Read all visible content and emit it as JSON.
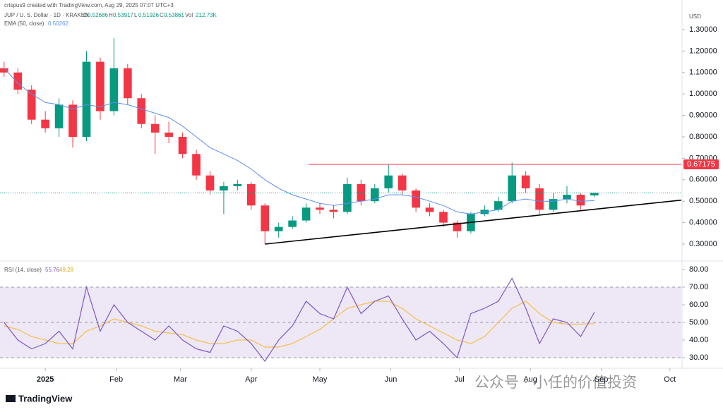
{
  "chart_data": [
    {
      "type": "candlestick",
      "author": "crispus9 created with TradingView.com, Aug 29, 2025 07:07 UTC+3",
      "symbol": "JUP / U. S. Dollar · 1D · KRAKEN",
      "ohlc_labels": [
        "O",
        "H",
        "L",
        "C"
      ],
      "volume_label": "Vol",
      "volume": "212.73K",
      "currency": "USD",
      "x": [
        -18,
        -12,
        -6,
        0,
        6,
        12,
        18,
        24,
        30,
        36,
        42,
        48,
        54,
        60,
        66,
        72,
        78,
        84,
        90,
        96,
        102,
        108,
        114,
        120,
        126,
        132,
        138,
        144,
        150,
        156,
        162,
        168,
        174,
        180,
        186,
        192,
        198,
        204,
        210,
        216,
        222,
        228,
        234,
        240
      ],
      "open": [
        1.12,
        1.1,
        1.02,
        0.88,
        0.84,
        0.95,
        0.8,
        1.15,
        0.92,
        1.12,
        0.98,
        0.86,
        0.82,
        0.8,
        0.72,
        0.62,
        0.55,
        0.57,
        0.58,
        0.48,
        0.36,
        0.38,
        0.41,
        0.47,
        0.46,
        0.45,
        0.58,
        0.5,
        0.56,
        0.62,
        0.55,
        0.47,
        0.45,
        0.4,
        0.36,
        0.44,
        0.46,
        0.5,
        0.62,
        0.56,
        0.46,
        0.51,
        0.53,
        0.52686
      ],
      "high": [
        1.15,
        1.12,
        1.04,
        0.92,
        0.98,
        0.97,
        1.2,
        1.17,
        1.26,
        1.14,
        1.0,
        0.9,
        0.87,
        0.82,
        0.74,
        0.64,
        0.59,
        0.6,
        0.59,
        0.49,
        0.4,
        0.43,
        0.49,
        0.49,
        0.48,
        0.61,
        0.6,
        0.58,
        0.67,
        0.63,
        0.56,
        0.49,
        0.46,
        0.41,
        0.45,
        0.48,
        0.52,
        0.68,
        0.64,
        0.58,
        0.54,
        0.57,
        0.54,
        0.53917
      ],
      "low": [
        1.08,
        1.0,
        0.86,
        0.82,
        0.8,
        0.75,
        0.78,
        0.88,
        0.9,
        0.95,
        0.84,
        0.72,
        0.77,
        0.7,
        0.6,
        0.53,
        0.44,
        0.55,
        0.46,
        0.3,
        0.33,
        0.37,
        0.4,
        0.44,
        0.42,
        0.44,
        0.48,
        0.49,
        0.54,
        0.53,
        0.45,
        0.43,
        0.38,
        0.33,
        0.35,
        0.43,
        0.45,
        0.49,
        0.54,
        0.44,
        0.45,
        0.49,
        0.46,
        0.51926
      ],
      "close": [
        1.1,
        1.02,
        0.88,
        0.84,
        0.95,
        0.8,
        1.15,
        0.92,
        1.12,
        0.98,
        0.86,
        0.82,
        0.8,
        0.72,
        0.62,
        0.55,
        0.57,
        0.58,
        0.48,
        0.36,
        0.38,
        0.41,
        0.47,
        0.46,
        0.45,
        0.58,
        0.5,
        0.56,
        0.62,
        0.55,
        0.47,
        0.45,
        0.4,
        0.36,
        0.44,
        0.46,
        0.5,
        0.62,
        0.56,
        0.46,
        0.51,
        0.53,
        0.48,
        0.53861
      ],
      "up_color": "#089981",
      "down_color": "#f23645",
      "ema": {
        "name": "EMA (50, close)",
        "color": "#5b8def",
        "values": [
          1.12,
          1.05,
          1.0,
          0.96,
          0.95,
          0.93,
          0.95,
          0.94,
          0.96,
          0.95,
          0.93,
          0.91,
          0.89,
          0.85,
          0.8,
          0.75,
          0.72,
          0.69,
          0.65,
          0.6,
          0.56,
          0.53,
          0.51,
          0.49,
          0.48,
          0.49,
          0.5,
          0.51,
          0.53,
          0.53,
          0.52,
          0.5,
          0.48,
          0.45,
          0.44,
          0.45,
          0.46,
          0.5,
          0.51,
          0.5,
          0.5,
          0.51,
          0.5,
          0.50262
        ]
      },
      "trendline": {
        "x": [
          96,
          278
        ],
        "values": [
          0.3,
          0.505
        ],
        "color": "#000000"
      },
      "resistance": {
        "x": [
          115,
          278
        ],
        "value": 0.67175,
        "color": "#f23645"
      },
      "xlim": [
        -19.8,
        278
      ],
      "ylim": [
        0.2276,
        1.438
      ],
      "yticks": [
        {
          "value": 0.3,
          "label": "0.30000"
        },
        {
          "value": 0.4,
          "label": "0.40000"
        },
        {
          "value": 0.5,
          "label": "0.50000"
        },
        {
          "value": 0.6,
          "label": "0.60000"
        },
        {
          "value": 0.7,
          "label": "0.70000"
        },
        {
          "value": 0.8,
          "label": "0.80000"
        },
        {
          "value": 0.9,
          "label": "0.90000"
        },
        {
          "value": 1.0,
          "label": "1.00000"
        },
        {
          "value": 1.1,
          "label": "1.10000"
        },
        {
          "value": 1.2,
          "label": "1.20000"
        },
        {
          "value": 1.3,
          "label": "1.30000"
        }
      ],
      "brand": "TradingView"
    },
    {
      "type": "line",
      "title": "RSI (14, close)",
      "x": [
        -18,
        -12,
        -6,
        0,
        6,
        12,
        18,
        24,
        30,
        36,
        42,
        48,
        54,
        60,
        66,
        72,
        78,
        84,
        90,
        96,
        102,
        108,
        114,
        120,
        126,
        132,
        138,
        144,
        150,
        156,
        162,
        168,
        174,
        180,
        186,
        192,
        198,
        204,
        210,
        216,
        222,
        228,
        234,
        240
      ],
      "series": [
        {
          "name": "RSI (14, close)",
          "color": "#7e57c2",
          "values": [
            50,
            40,
            35,
            38,
            45,
            35,
            70,
            45,
            60,
            50,
            45,
            40,
            48,
            40,
            35,
            33,
            48,
            45,
            38,
            28,
            40,
            48,
            62,
            55,
            52,
            70,
            55,
            62,
            65,
            52,
            40,
            45,
            38,
            30,
            55,
            58,
            62,
            75,
            58,
            38,
            52,
            50,
            42,
            55.76
          ]
        },
        {
          "color": "#f5c04a",
          "values": [
            48,
            46,
            42,
            40,
            38,
            38,
            45,
            48,
            52,
            50,
            48,
            45,
            44,
            43,
            40,
            38,
            38,
            40,
            40,
            36,
            36,
            38,
            42,
            46,
            52,
            58,
            60,
            62,
            62,
            58,
            52,
            48,
            44,
            40,
            38,
            42,
            50,
            58,
            62,
            55,
            50,
            49,
            49,
            49.28
          ]
        }
      ],
      "levels": [
        70,
        50,
        30
      ],
      "band_color": "#ede7f6",
      "xlim": [
        -19.8,
        278
      ],
      "ylim": [
        25.6,
        84
      ],
      "yticks": [
        {
          "value": 30,
          "label": "30.00"
        },
        {
          "value": 40,
          "label": "40.00"
        },
        {
          "value": 50,
          "label": "50.00"
        },
        {
          "value": 60,
          "label": "60.00"
        },
        {
          "value": 70,
          "label": "70.00"
        },
        {
          "value": 80,
          "label": "80.00"
        }
      ],
      "xticks": [
        {
          "value": 0,
          "label": "2025"
        },
        {
          "value": 31,
          "label": "Feb"
        },
        {
          "value": 59,
          "label": "Mar"
        },
        {
          "value": 90,
          "label": "Apr"
        },
        {
          "value": 120,
          "label": "May"
        },
        {
          "value": 151,
          "label": "Jun"
        },
        {
          "value": 181,
          "label": "Jul"
        },
        {
          "value": 212,
          "label": "Aug"
        },
        {
          "value": 243,
          "label": "Sep"
        },
        {
          "value": 273,
          "label": "Oct"
        }
      ]
    }
  ],
  "watermark": "公众号 · 小任的价值投资"
}
